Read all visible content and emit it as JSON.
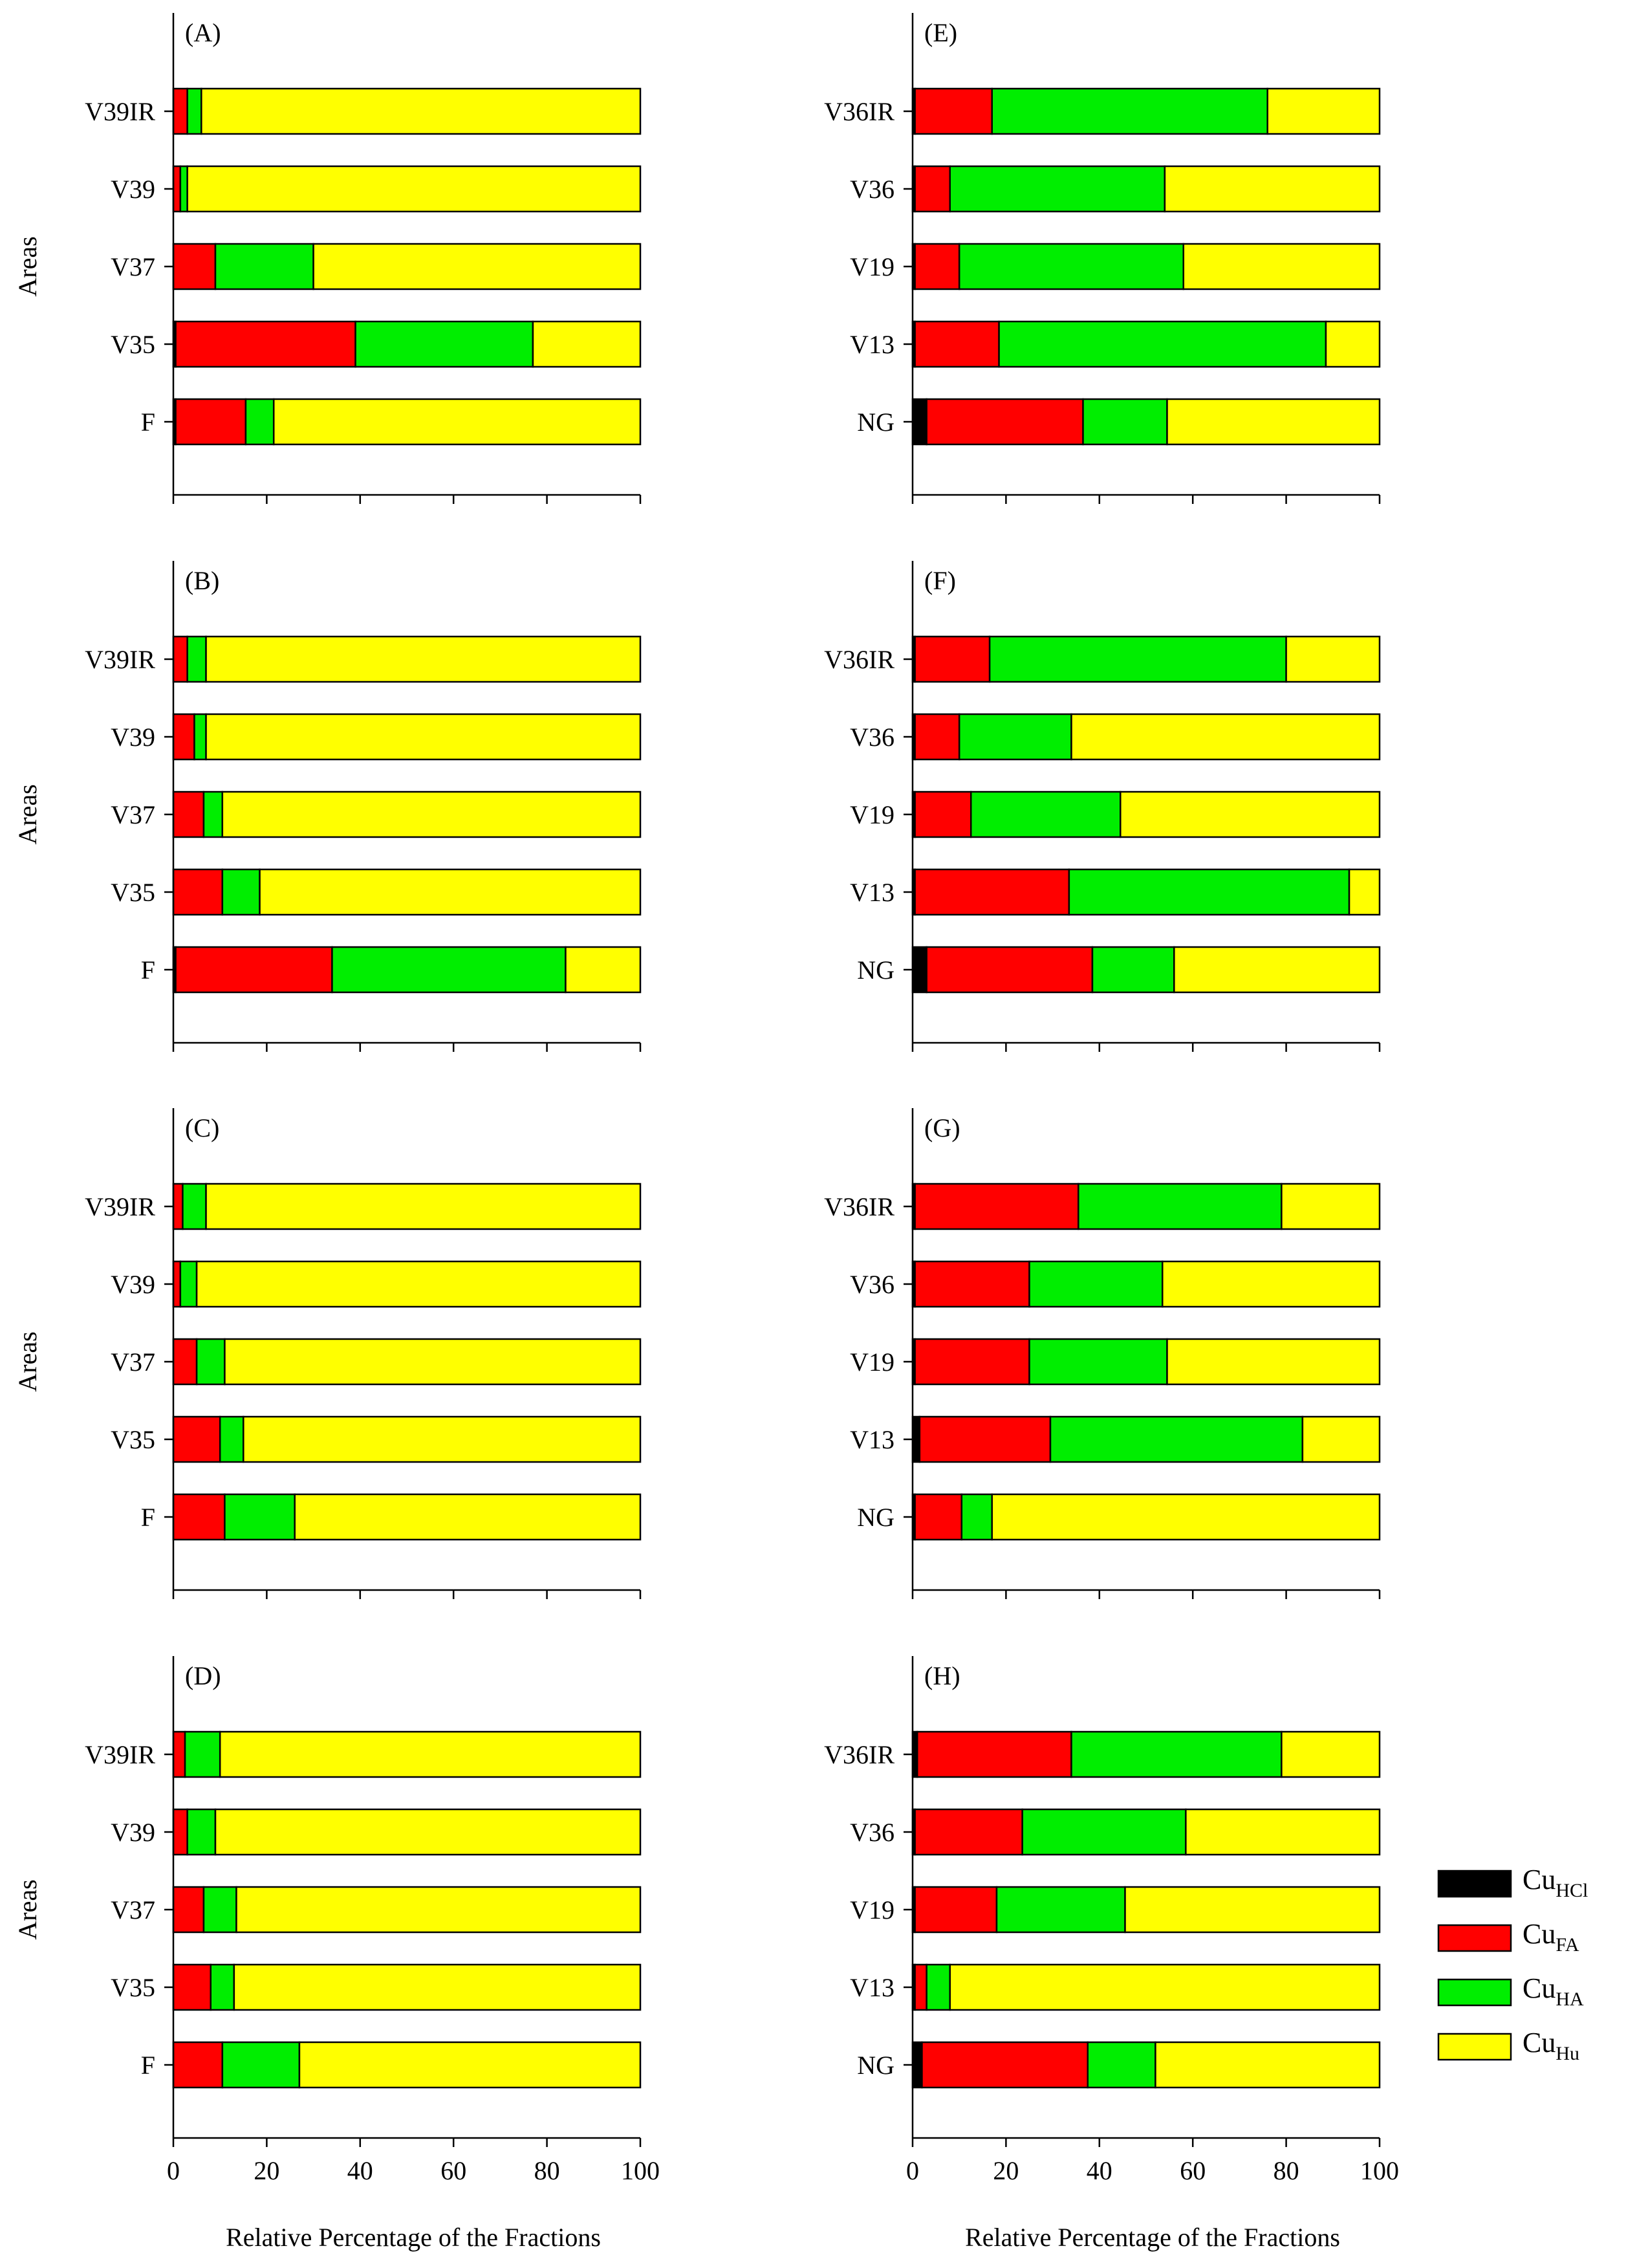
{
  "chart_data": {
    "type": "bar",
    "orientation": "horizontal",
    "stacked": true,
    "xlabel": "Relative Percentage of the Fractions",
    "ylabel": "Areas",
    "xlim": [
      0,
      100
    ],
    "xticks": [
      0,
      20,
      40,
      60,
      80,
      100
    ],
    "legend": {
      "placement": "bottom-right",
      "entries": [
        {
          "base": "Cu",
          "sub": "HCl",
          "color": "#000000"
        },
        {
          "base": "Cu",
          "sub": "FA",
          "color": "#ff0000"
        },
        {
          "base": "Cu",
          "sub": "HA",
          "color": "#00ee00"
        },
        {
          "base": "Cu",
          "sub": "Hu",
          "color": "#ffff00"
        }
      ]
    },
    "series_names": [
      "CuHCl",
      "CuFA",
      "CuHA",
      "CuHu"
    ],
    "panels": [
      {
        "label": "(A)",
        "categories": [
          "V39IR",
          "V39",
          "V37",
          "V35",
          "F"
        ],
        "values": [
          [
            0,
            3,
            3,
            94
          ],
          [
            0,
            1.5,
            1.5,
            97
          ],
          [
            0,
            9,
            21,
            70
          ],
          [
            0.5,
            38.5,
            38,
            23
          ],
          [
            0.5,
            15,
            6,
            78.5
          ]
        ]
      },
      {
        "label": "(B)",
        "categories": [
          "V39IR",
          "V39",
          "V37",
          "V35",
          "F"
        ],
        "values": [
          [
            0,
            3,
            4,
            93
          ],
          [
            0,
            4.5,
            2.5,
            93
          ],
          [
            0,
            6.5,
            4,
            89.5
          ],
          [
            0,
            10.5,
            8,
            81.5
          ],
          [
            0.5,
            33.5,
            50,
            16
          ]
        ]
      },
      {
        "label": "(C)",
        "categories": [
          "V39IR",
          "V39",
          "V37",
          "V35",
          "F"
        ],
        "values": [
          [
            0,
            2,
            5,
            93
          ],
          [
            0,
            1.5,
            3.5,
            95
          ],
          [
            0,
            5,
            6,
            89
          ],
          [
            0,
            10,
            5,
            85
          ],
          [
            0,
            11,
            15,
            74
          ]
        ]
      },
      {
        "label": "(D)",
        "categories": [
          "V39IR",
          "V39",
          "V37",
          "V35",
          "F"
        ],
        "values": [
          [
            0,
            2.5,
            7.5,
            90
          ],
          [
            0,
            3,
            6,
            91
          ],
          [
            0,
            6.5,
            7,
            86.5
          ],
          [
            0,
            8,
            5,
            87
          ],
          [
            0,
            10.5,
            16.5,
            73
          ]
        ]
      },
      {
        "label": "(E)",
        "categories": [
          "V36IR",
          "V36",
          "V19",
          "V13",
          "NG"
        ],
        "values": [
          [
            0.5,
            16.5,
            59,
            24
          ],
          [
            0.5,
            7.5,
            46,
            46
          ],
          [
            0.5,
            9.5,
            48,
            42
          ],
          [
            0.5,
            18,
            70,
            11.5
          ],
          [
            3,
            33.5,
            18,
            45.5
          ]
        ]
      },
      {
        "label": "(F)",
        "categories": [
          "V36IR",
          "V36",
          "V19",
          "V13",
          "NG"
        ],
        "values": [
          [
            0.5,
            16,
            63.5,
            20
          ],
          [
            0.5,
            9.5,
            24,
            66
          ],
          [
            0.5,
            12,
            32,
            55.5
          ],
          [
            0.5,
            33,
            60,
            6.5
          ],
          [
            3,
            35.5,
            17.5,
            44
          ]
        ]
      },
      {
        "label": "(G)",
        "categories": [
          "V36IR",
          "V36",
          "V19",
          "V13",
          "NG"
        ],
        "values": [
          [
            0.5,
            35,
            43.5,
            21
          ],
          [
            0.5,
            24.5,
            28.5,
            46.5
          ],
          [
            0.5,
            24.5,
            29.5,
            45.5
          ],
          [
            1.5,
            28,
            54,
            16.5
          ],
          [
            0.5,
            10,
            6.5,
            83
          ]
        ]
      },
      {
        "label": "(H)",
        "categories": [
          "V36IR",
          "V36",
          "V19",
          "V13",
          "NG"
        ],
        "values": [
          [
            1,
            33,
            45,
            21
          ],
          [
            0.5,
            23,
            35,
            41.5
          ],
          [
            0.5,
            17.5,
            27.5,
            54.5
          ],
          [
            0.5,
            2.5,
            5,
            92
          ],
          [
            2,
            35.5,
            14.5,
            48
          ]
        ]
      }
    ]
  }
}
